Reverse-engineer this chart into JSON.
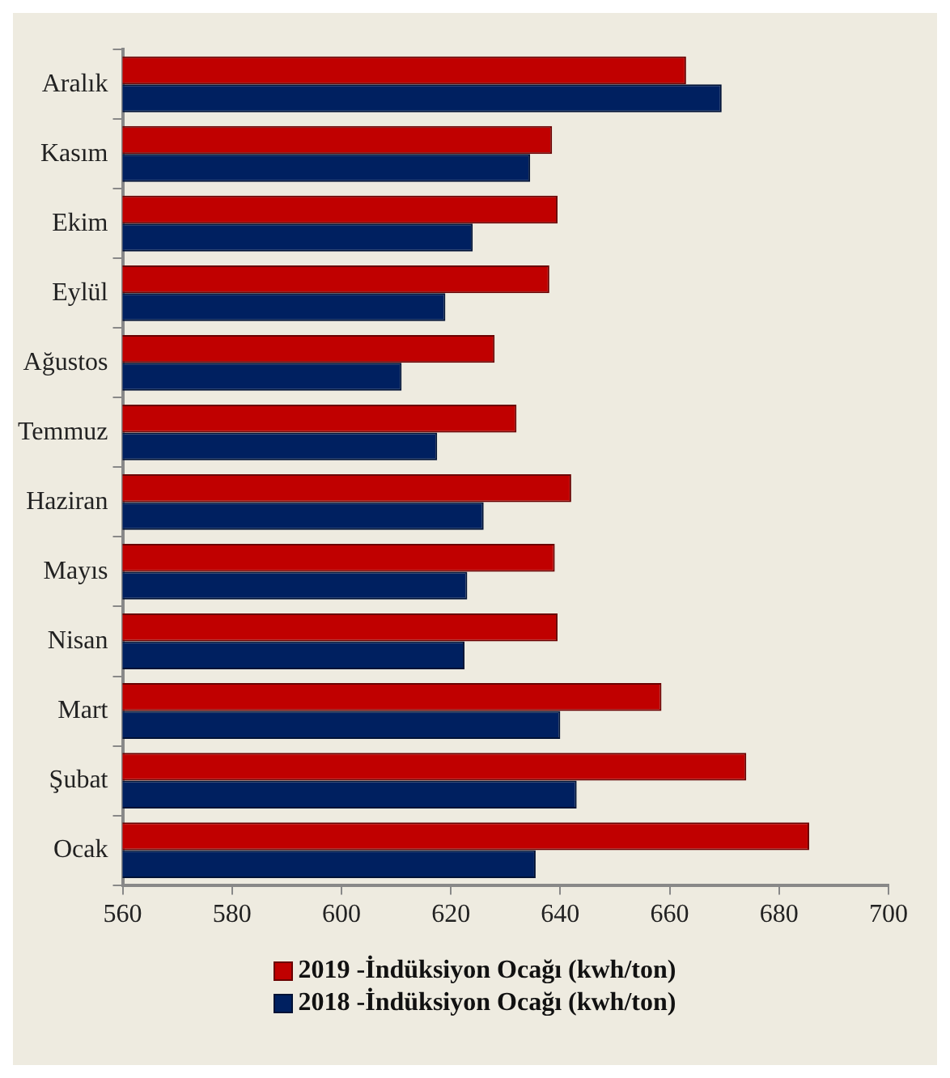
{
  "chart_data": {
    "type": "bar",
    "orientation": "horizontal",
    "categories": [
      "Aralık",
      "Kasım",
      "Ekim",
      "Eylül",
      "Ağustos",
      "Temmuz",
      "Haziran",
      "Mayıs",
      "Nisan",
      "Mart",
      "Şubat",
      "Ocak"
    ],
    "series": [
      {
        "name": "2019 -İndüksiyon Ocağı (kwh/ton)",
        "color": "#c00000",
        "values": [
          663,
          638.5,
          639.5,
          638,
          628,
          632,
          642,
          639,
          639.5,
          658.5,
          674,
          685.5
        ]
      },
      {
        "name": "2018 -İndüksiyon Ocağı (kwh/ton)",
        "color": "#002060",
        "values": [
          669.5,
          634.5,
          624,
          619,
          611,
          617.5,
          626,
          623,
          622.5,
          640,
          643,
          635.5
        ]
      }
    ],
    "xlim": [
      560,
      700
    ],
    "xticks": [
      560,
      580,
      600,
      620,
      640,
      660,
      680,
      700
    ],
    "grid": false,
    "legend": "bottom"
  }
}
